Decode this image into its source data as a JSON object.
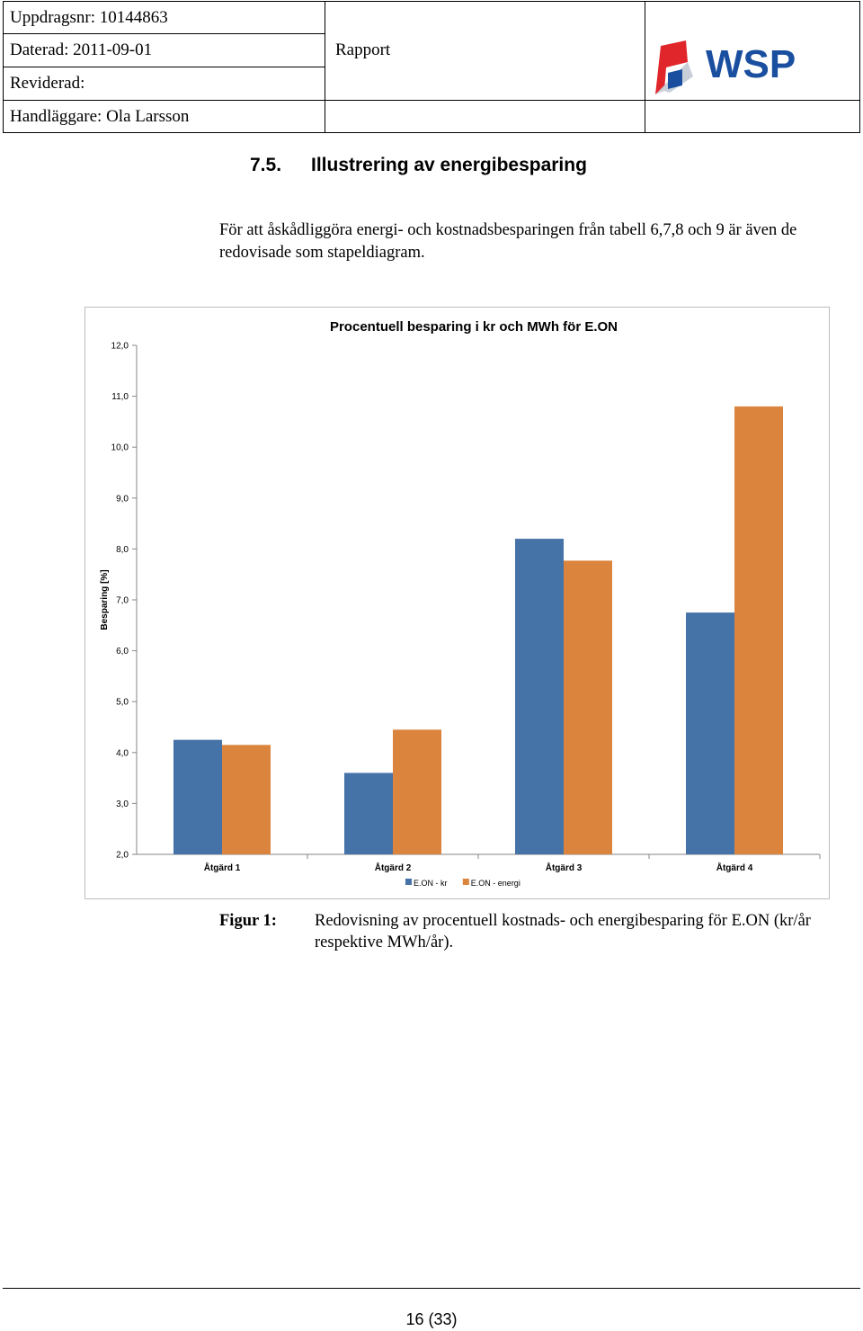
{
  "header": {
    "assignment_no": "Uppdragsnr: 10144863",
    "dated": "Daterad: 2011-09-01",
    "revised": "Reviderad:",
    "handler": "Handläggare: Ola Larsson",
    "doc_type": "Rapport",
    "logo_text": "WSP"
  },
  "section": {
    "number": "7.5.",
    "title": "Illustrering av energibesparing"
  },
  "paragraph": "För att åskådliggöra energi- och kostnadsbesparingen från tabell 6,7,8 och 9 är även de redovisade som stapeldiagram.",
  "chart_data": {
    "type": "bar",
    "title": "Procentuell besparing i kr och MWh för E.ON",
    "xlabel": "",
    "ylabel": "Besparing [%]",
    "ylim": [
      2.0,
      12.0
    ],
    "yticks": [
      "2,0",
      "3,0",
      "4,0",
      "5,0",
      "6,0",
      "7,0",
      "8,0",
      "9,0",
      "10,0",
      "11,0",
      "12,0"
    ],
    "categories": [
      "Åtgärd 1",
      "Åtgärd 2",
      "Åtgärd 3",
      "Åtgärd 4"
    ],
    "series": [
      {
        "name": "E.ON - kr",
        "color": "#4572A7",
        "values": [
          4.25,
          3.6,
          8.2,
          6.75
        ]
      },
      {
        "name": "E.ON - energi",
        "color": "#DB843D",
        "values": [
          4.15,
          4.45,
          7.77,
          10.8
        ]
      }
    ],
    "grid": false,
    "legend": "bottom"
  },
  "caption": {
    "label": "Figur 1:",
    "text": "Redovisning av procentuell kostnads- och energibesparing för E.ON (kr/år respektive MWh/år)."
  },
  "footer": {
    "page": "16 (33)"
  },
  "colors": {
    "logo_blue": "#1a4fa0",
    "logo_red": "#e0262b"
  }
}
